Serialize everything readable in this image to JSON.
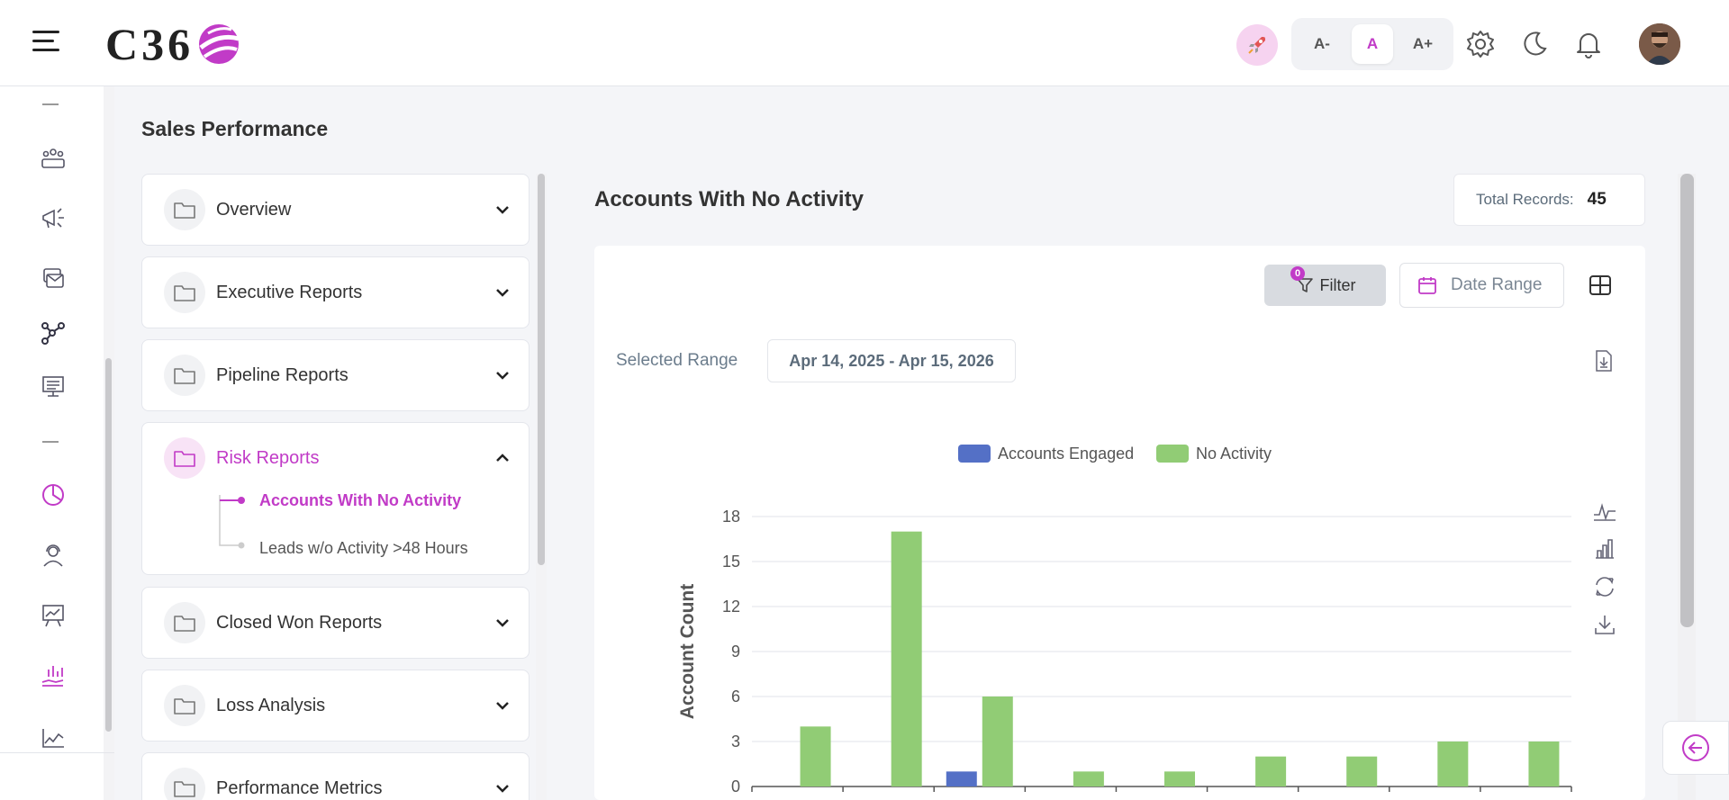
{
  "header": {
    "logo_text": "C36",
    "font_sizes": [
      "A-",
      "A",
      "A+"
    ],
    "active_font_size": "A",
    "icons": [
      "rocket-icon",
      "gear-icon",
      "moon-icon",
      "bell-icon"
    ]
  },
  "rail": {
    "icons": [
      "users-icon",
      "megaphone-icon",
      "mail-stack-icon",
      "network-icon",
      "presentation-icon",
      "pie-chart-icon",
      "support-agent-icon",
      "chart-board-icon",
      "hand-chart-icon",
      "line-chart-icon"
    ]
  },
  "page": {
    "title": "Sales Performance"
  },
  "menu": {
    "items": [
      {
        "label": "Overview"
      },
      {
        "label": "Executive Reports"
      },
      {
        "label": "Pipeline Reports"
      },
      {
        "label": "Risk Reports"
      },
      {
        "label": "Closed Won Reports"
      },
      {
        "label": "Loss Analysis"
      },
      {
        "label": "Performance Metrics"
      }
    ],
    "sub_items": [
      {
        "label": "Accounts With No Activity"
      },
      {
        "label": "Leads w/o Activity >48 Hours"
      }
    ]
  },
  "report": {
    "title": "Accounts With No Activity",
    "total_label": "Total Records:",
    "total_value": "45",
    "filter_label": "Filter",
    "filter_count": "0",
    "date_range_label": "Date Range",
    "selected_range_label": "Selected Range",
    "selected_range_value": "Apr 14, 2025 - Apr 15, 2026"
  },
  "colors": {
    "accent": "#c13bc7",
    "series_engaged": "#5470c6",
    "series_no_activity": "#91cc75"
  },
  "chart_data": {
    "type": "bar",
    "ylabel": "Account Count",
    "ylim": [
      0,
      18
    ],
    "yticks": [
      0,
      3,
      6,
      9,
      12,
      15,
      18
    ],
    "legend_position": "top-center",
    "grid": true,
    "categories": [
      "",
      "",
      "",
      "",
      "",
      "",
      "",
      "",
      ""
    ],
    "series": [
      {
        "name": "Accounts Engaged",
        "values": [
          0,
          0,
          1,
          0,
          0,
          0,
          0,
          0,
          0
        ]
      },
      {
        "name": "No Activity",
        "values": [
          4,
          17,
          6,
          1,
          1,
          2,
          2,
          3,
          3
        ]
      }
    ]
  }
}
